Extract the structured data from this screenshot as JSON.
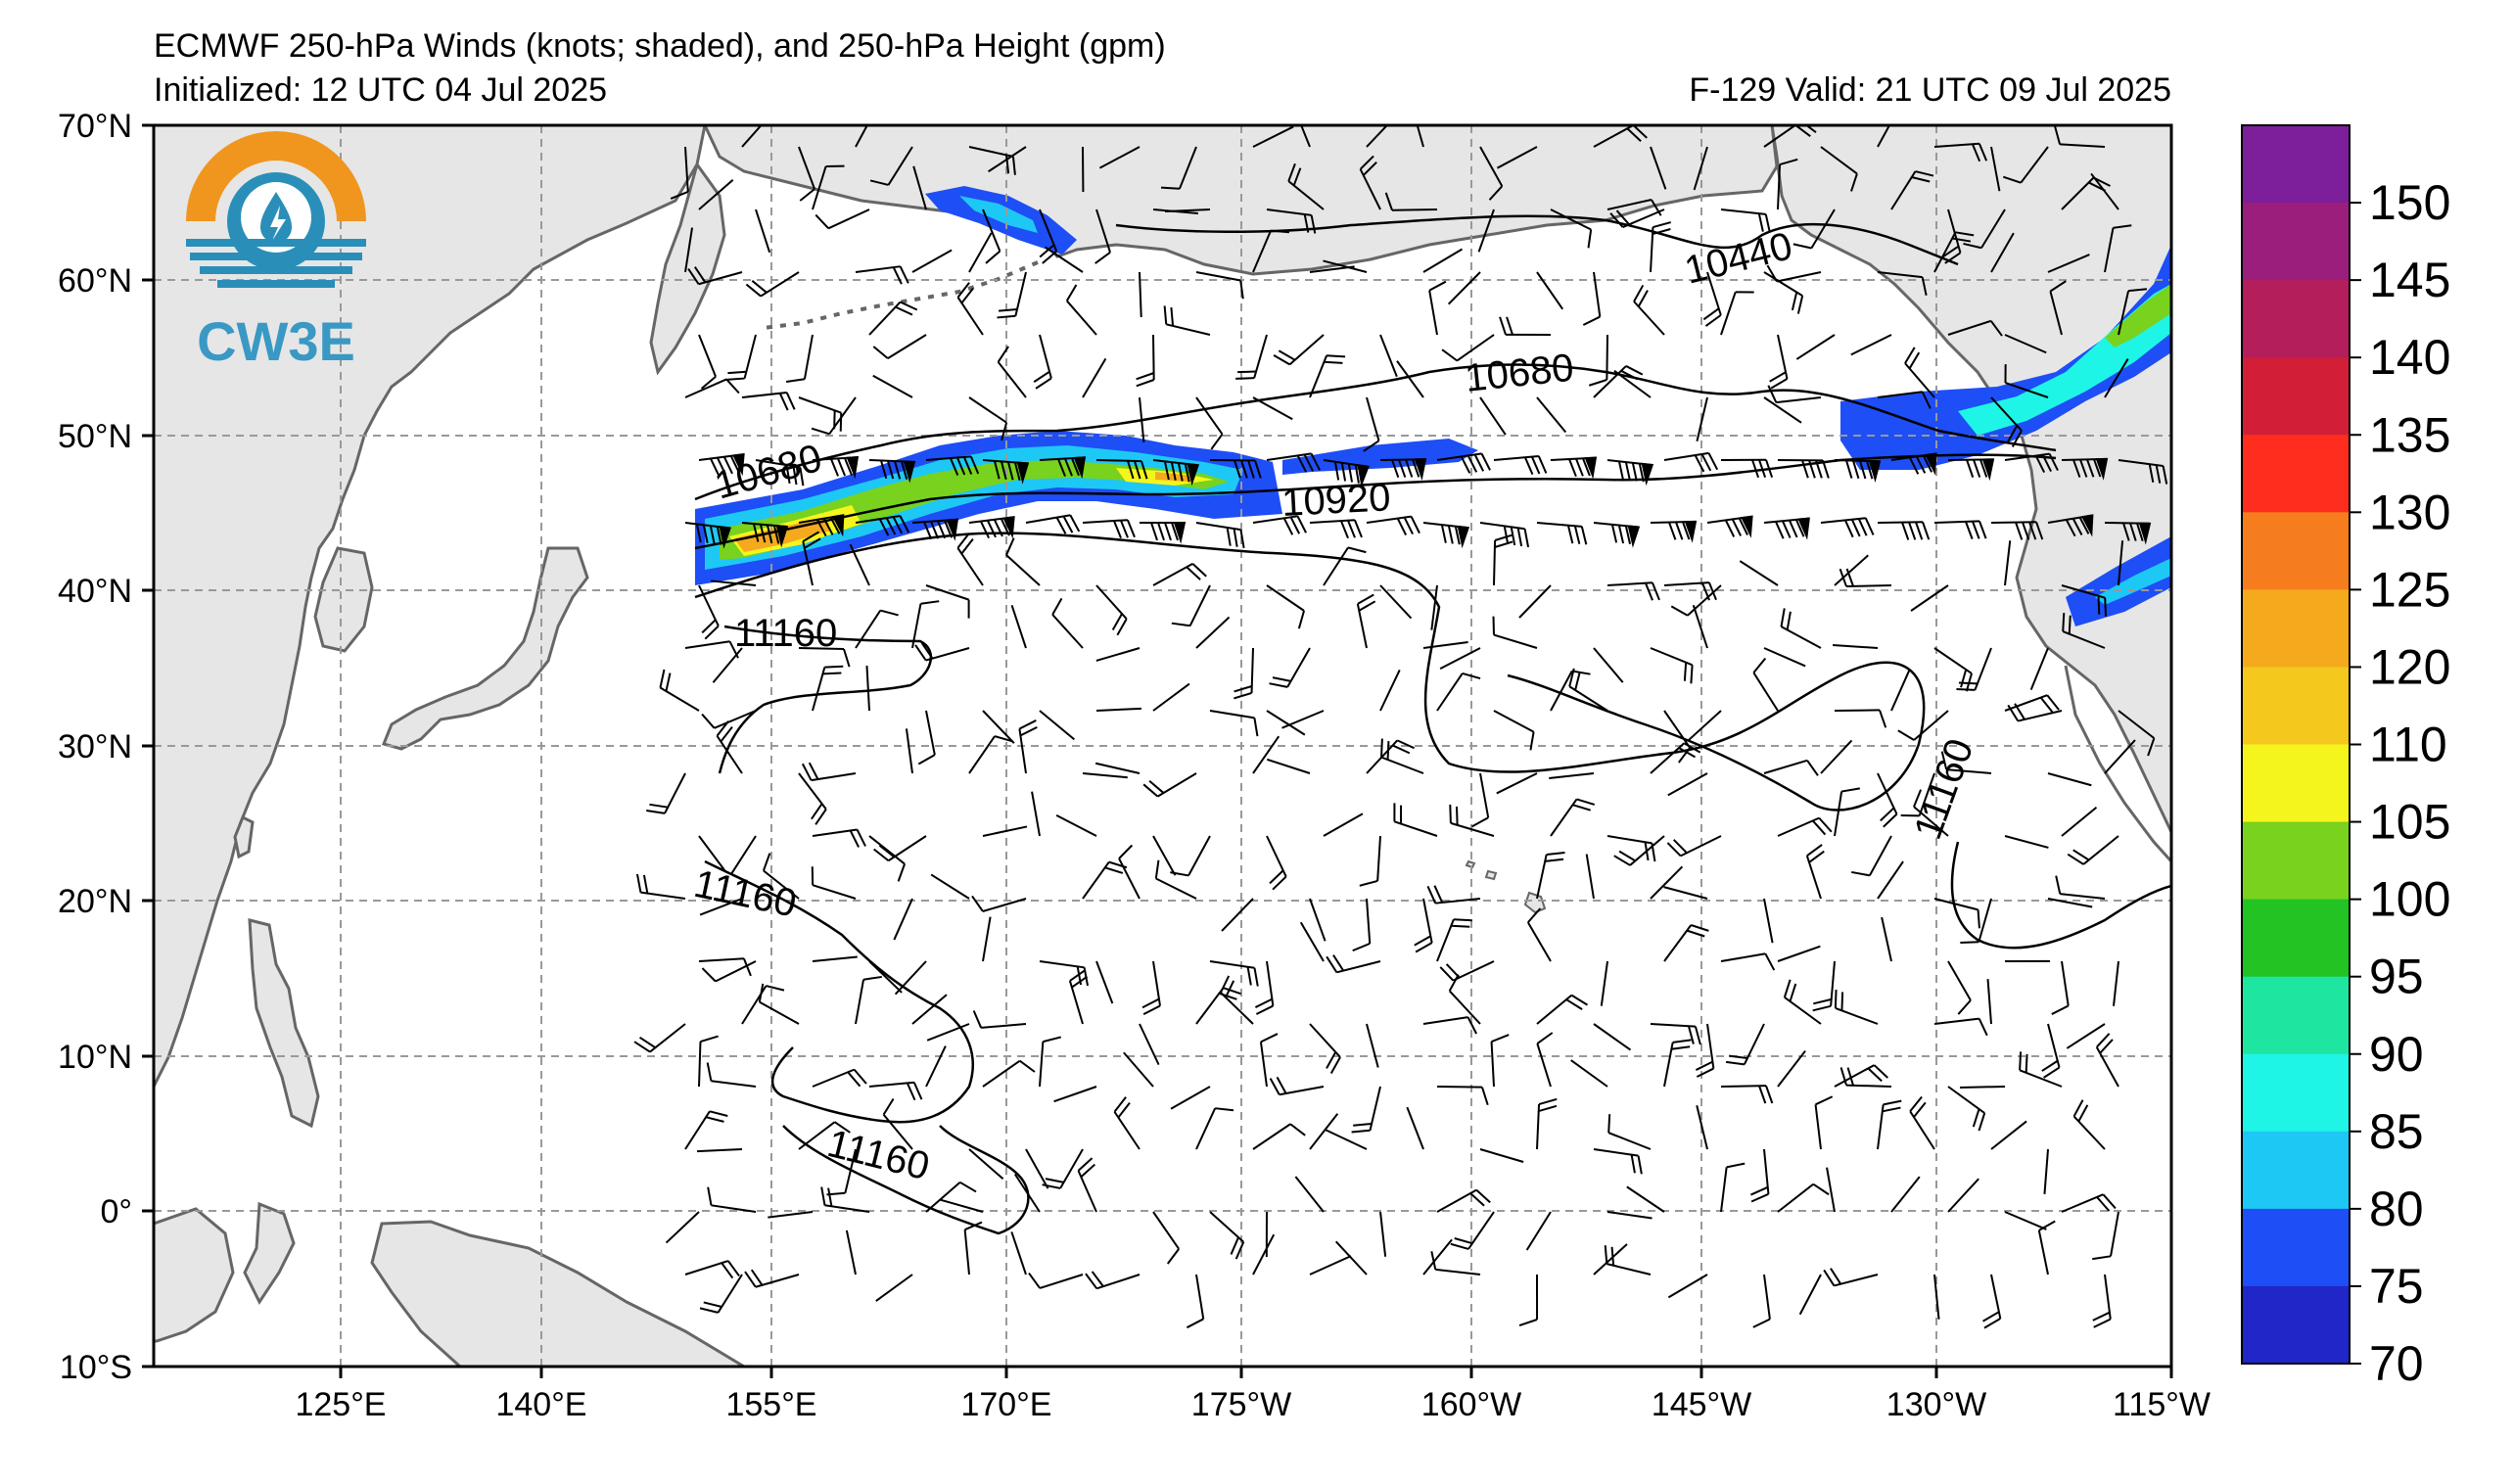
{
  "header": {
    "title": "ECMWF 250-hPa Winds (knots; shaded), and 250-hPa Height (gpm)",
    "initialized": "Initialized: 12 UTC 04 Jul 2025",
    "valid": "F-129  Valid: 21 UTC 09 Jul 2025"
  },
  "logo": {
    "text": "CW3E",
    "colors": {
      "sun": "#f0961e",
      "water": "#2a8fb8"
    }
  },
  "map": {
    "lon_range": [
      110,
      245
    ],
    "lat_range": [
      -10,
      70
    ],
    "lat_labels": [
      "70°N",
      "60°N",
      "50°N",
      "40°N",
      "30°N",
      "20°N",
      "10°N",
      "0°",
      "10°S"
    ],
    "lon_labels": [
      "125°E",
      "140°E",
      "155°E",
      "170°E",
      "175°W",
      "160°W",
      "145°W",
      "130°W",
      "115°W"
    ],
    "contour_labels": [
      "10440",
      "10680",
      "10680",
      "10920",
      "11160",
      "11160",
      "11160",
      "11160"
    ]
  },
  "colorbar": {
    "levels": [
      "70",
      "75",
      "80",
      "85",
      "90",
      "95",
      "100",
      "105",
      "110",
      "120",
      "125",
      "130",
      "135",
      "140",
      "145",
      "150"
    ],
    "colors": [
      "#2026c8",
      "#1e4ef5",
      "#1ec8f5",
      "#1ef5e6",
      "#1ee6a0",
      "#23c323",
      "#78d21e",
      "#f5f51e",
      "#f5c81e",
      "#f5aa1e",
      "#f57d1e",
      "#ff2d1e",
      "#d21e37",
      "#b41e5a",
      "#9b1e7d",
      "#7d1e9b"
    ]
  }
}
